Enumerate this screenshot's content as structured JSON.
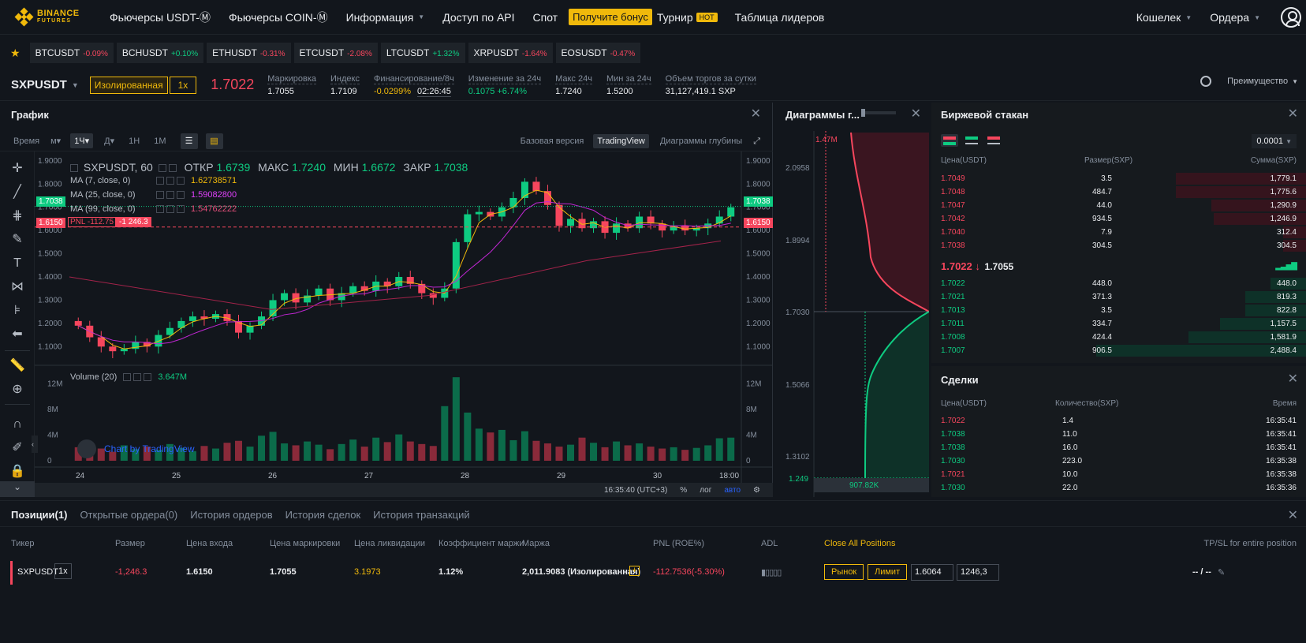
{
  "nav": {
    "logo_line1": "BINANCE",
    "logo_line2": "FUTURES",
    "items": [
      "Фьючерсы USDT-Ⓜ",
      "Фьючерсы COIN-Ⓜ",
      "Информация",
      "Доступ по API",
      "Спот"
    ],
    "bonus": "Получите бонус",
    "tournament": "Турнир",
    "hot": "HOT",
    "leaderboard": "Таблица лидеров",
    "wallet": "Кошелек",
    "orders": "Ордера"
  },
  "tickers": [
    {
      "sym": "BTCUSDT",
      "chg": "-0.09%",
      "up": false
    },
    {
      "sym": "BCHUSDT",
      "chg": "+0.10%",
      "up": true
    },
    {
      "sym": "ETHUSDT",
      "chg": "-0.31%",
      "up": false
    },
    {
      "sym": "ETCUSDT",
      "chg": "-2.08%",
      "up": false
    },
    {
      "sym": "LTCUSDT",
      "chg": "+1.32%",
      "up": true
    },
    {
      "sym": "XRPUSDT",
      "chg": "-1.64%",
      "up": false
    },
    {
      "sym": "EOSUSDT",
      "chg": "-0.47%",
      "up": false
    }
  ],
  "symbol": {
    "name": "SXPUSDT",
    "margin_mode": "Изолированная",
    "leverage": "1x",
    "last": "1.7022",
    "stats": [
      {
        "label": "Маркировка",
        "value": "1.7055",
        "color": "#eaecef"
      },
      {
        "label": "Индекс",
        "value": "1.7109",
        "color": "#eaecef"
      },
      {
        "label": "Финансирование/8ч",
        "value": "-0.0299%",
        "value2": "02:26:45",
        "color": "#f0b90b"
      },
      {
        "label": "Изменение за 24ч",
        "value": "0.1075 +6.74%",
        "color": "#0ecb81"
      },
      {
        "label": "Макс 24ч",
        "value": "1.7240",
        "color": "#eaecef"
      },
      {
        "label": "Мин за 24ч",
        "value": "1.5200",
        "color": "#eaecef"
      },
      {
        "label": "Объем торгов за сутки",
        "value": "31,127,419.1 SXP",
        "color": "#eaecef"
      }
    ],
    "advantage": "Преимущество"
  },
  "chart": {
    "title": "График",
    "toolbar": {
      "time": "Время",
      "m": "м",
      "h1": "1Ч",
      "d": "Д",
      "w": "1Н",
      "mo": "1М",
      "basic": "Базовая версия",
      "tv": "TradingView",
      "depth": "Диаграммы глубины"
    },
    "legend": {
      "symbol": "SXPUSDT, 60",
      "open_lbl": "ОТКР",
      "open": "1.6739",
      "high_lbl": "МАКС",
      "high": "1.7240",
      "low_lbl": "МИН",
      "low": "1.6672",
      "close_lbl": "ЗАКР",
      "close": "1.7038",
      "ma7": "MA (7, close, 0)",
      "ma7_val": "1.62738571",
      "ma25": "MA (25, close, 0)",
      "ma25_val": "1.59082800",
      "ma99": "MA (99, close, 0)",
      "ma99_val": "1.54762222",
      "pnl": "PNL -112.75",
      "pnl_qty": "-1 246.3",
      "volume": "Volume (20)",
      "volume_val": "3.647M"
    },
    "price_ticks": [
      "1.9000",
      "1.8000",
      "1.7000",
      "1.6000",
      "1.5000",
      "1.4000",
      "1.3000",
      "1.2000",
      "1.1000"
    ],
    "vol_ticks": [
      "12M",
      "8M",
      "4M",
      "0"
    ],
    "x_ticks": [
      "24",
      "25",
      "26",
      "27",
      "28",
      "29",
      "30",
      "18:00"
    ],
    "tag_last": "1.7038",
    "tag_entry": "1.6150",
    "tv_brand": "Chart by TradingView",
    "footer": {
      "time": "16:35:40 (UTC+3)",
      "pct": "%",
      "log": "лог",
      "auto": "авто"
    },
    "colors": {
      "up": "#0ecb81",
      "down": "#f6465d",
      "ma7": "#f0b90b",
      "ma25": "#c026d3",
      "ma99": "#a3234a"
    }
  },
  "chart_data": {
    "type": "candlestick",
    "ylim": [
      1.05,
      1.92
    ],
    "y_ticks": [
      1.1,
      1.2,
      1.3,
      1.4,
      1.5,
      1.6,
      1.7,
      1.8,
      1.9
    ],
    "volume_ylim": [
      0,
      14000000
    ],
    "closes": [
      1.19,
      1.14,
      1.1,
      1.08,
      1.09,
      1.12,
      1.1,
      1.15,
      1.18,
      1.21,
      1.23,
      1.22,
      1.24,
      1.21,
      1.16,
      1.19,
      1.23,
      1.3,
      1.33,
      1.29,
      1.32,
      1.35,
      1.3,
      1.33,
      1.36,
      1.34,
      1.38,
      1.36,
      1.4,
      1.37,
      1.33,
      1.31,
      1.35,
      1.55,
      1.67,
      1.68,
      1.66,
      1.7,
      1.74,
      1.81,
      1.77,
      1.71,
      1.62,
      1.65,
      1.61,
      1.64,
      1.59,
      1.63,
      1.61,
      1.66,
      1.63,
      1.6,
      1.62,
      1.6,
      1.61,
      1.63,
      1.66,
      1.7
    ],
    "volumes": [
      2.1,
      1.6,
      1.9,
      1.4,
      2.4,
      1.8,
      2.2,
      1.7,
      2.6,
      2.0,
      1.5,
      2.3,
      1.9,
      2.8,
      3.1,
      2.2,
      3.9,
      4.5,
      2.7,
      2.4,
      3.0,
      2.5,
      1.8,
      2.6,
      3.3,
      2.2,
      3.6,
      2.9,
      4.1,
      3.0,
      2.6,
      2.3,
      8.5,
      13.0,
      7.5,
      5.0,
      4.4,
      4.8,
      3.2,
      4.6,
      3.1,
      2.7,
      2.2,
      2.5,
      3.6,
      2.8,
      2.1,
      3.0,
      2.4,
      2.7,
      2.2,
      1.9,
      2.1,
      1.7,
      2.0,
      2.4,
      3.5,
      3.6
    ]
  },
  "depth": {
    "title": "Диаграммы г...",
    "y_ticks": [
      "2.0958",
      "1.8994",
      "1.7030",
      "1.5066",
      "1.3102"
    ],
    "top_label": "1.47M",
    "bottom_price": "1.249",
    "bottom_label": "907.82K"
  },
  "book": {
    "title": "Биржевой стакан",
    "precision": "0.0001",
    "headers": [
      "Цена(USDT)",
      "Размер(SXP)",
      "Сумма(SXP)"
    ],
    "asks": [
      [
        "1.7049",
        "3.5",
        "1,779.1",
        0.62
      ],
      [
        "1.7048",
        "484.7",
        "1,775.6",
        0.62
      ],
      [
        "1.7047",
        "44.0",
        "1,290.9",
        0.45
      ],
      [
        "1.7042",
        "934.5",
        "1,246.9",
        0.44
      ],
      [
        "1.7040",
        "7.9",
        "312.4",
        0.11
      ],
      [
        "1.7038",
        "304.5",
        "304.5",
        0.11
      ]
    ],
    "mid": "1.7022",
    "mid_arrow": "↓",
    "mid_mark": "1.7055",
    "bids": [
      [
        "1.7022",
        "448.0",
        "448.0",
        0.17
      ],
      [
        "1.7021",
        "371.3",
        "819.3",
        0.29
      ],
      [
        "1.7013",
        "3.5",
        "822.8",
        0.29
      ],
      [
        "1.7011",
        "334.7",
        "1,157.5",
        0.41
      ],
      [
        "1.7008",
        "424.4",
        "1,581.9",
        0.56
      ],
      [
        "1.7007",
        "906.5",
        "2,488.4",
        1.0
      ]
    ]
  },
  "trades": {
    "title": "Сделки",
    "headers": [
      "Цена(USDT)",
      "Количество(SXP)",
      "Время"
    ],
    "rows": [
      [
        "1.7022",
        "1.4",
        "16:35:41",
        false
      ],
      [
        "1.7038",
        "11.0",
        "16:35:41",
        true
      ],
      [
        "1.7038",
        "16.0",
        "16:35:41",
        true
      ],
      [
        "1.7030",
        "223.0",
        "16:35:38",
        true
      ],
      [
        "1.7021",
        "10.0",
        "16:35:38",
        false
      ],
      [
        "1.7030",
        "22.0",
        "16:35:36",
        true
      ]
    ]
  },
  "positions": {
    "tabs": [
      "Позиции(1)",
      "Открытые ордера(0)",
      "История ордеров",
      "История сделок",
      "История транзакций"
    ],
    "headers": [
      "Тикер",
      "Размер",
      "Цена входа",
      "Цена маркировки",
      "Цена ликвидации",
      "Коэффициент маржи",
      "Маржа",
      "PNL (ROE%)",
      "ADL",
      "Close All Positions",
      "TP/SL for entire position"
    ],
    "row": {
      "ticker": "SXPUSDT",
      "lev": "1x",
      "size": "-1,246.3",
      "entry": "1.6150",
      "mark": "1.7055",
      "liq": "3.1973",
      "ratio": "1.12%",
      "margin": "2,011.9083 (Изолированная)",
      "pnl": "-112.7536(-5.30%)",
      "market": "Рынок",
      "limit": "Лимит",
      "price_input": "1.6064",
      "qty_input": "1246,3",
      "tpsl": "-- / --"
    }
  }
}
